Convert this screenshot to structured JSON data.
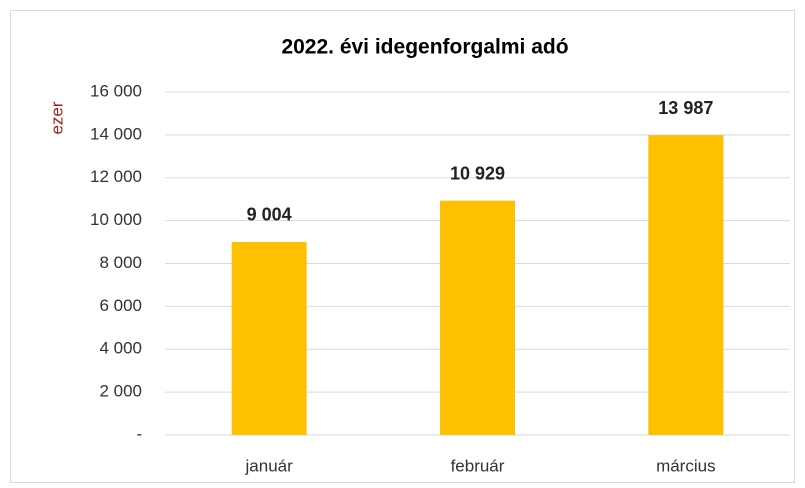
{
  "chart_data": {
    "type": "bar",
    "title": "2022. évi  idegenforgalmi adó",
    "y_label": "ezer",
    "categories": [
      "január",
      "február",
      "március"
    ],
    "values": [
      9004,
      10929,
      13987
    ],
    "value_labels": [
      "9 004",
      "10 929",
      "13 987"
    ],
    "color": "#ffc000",
    "ylim": [
      0,
      16000
    ],
    "yticks": [
      {
        "value": 0,
        "label": "-"
      },
      {
        "value": 2000,
        "label": "2 000"
      },
      {
        "value": 4000,
        "label": "4 000"
      },
      {
        "value": 6000,
        "label": "6 000"
      },
      {
        "value": 8000,
        "label": "8 000"
      },
      {
        "value": 10000,
        "label": "10 000"
      },
      {
        "value": 12000,
        "label": "12 000"
      },
      {
        "value": 14000,
        "label": "14 000"
      },
      {
        "value": 16000,
        "label": "16 000"
      }
    ],
    "grid": true
  }
}
